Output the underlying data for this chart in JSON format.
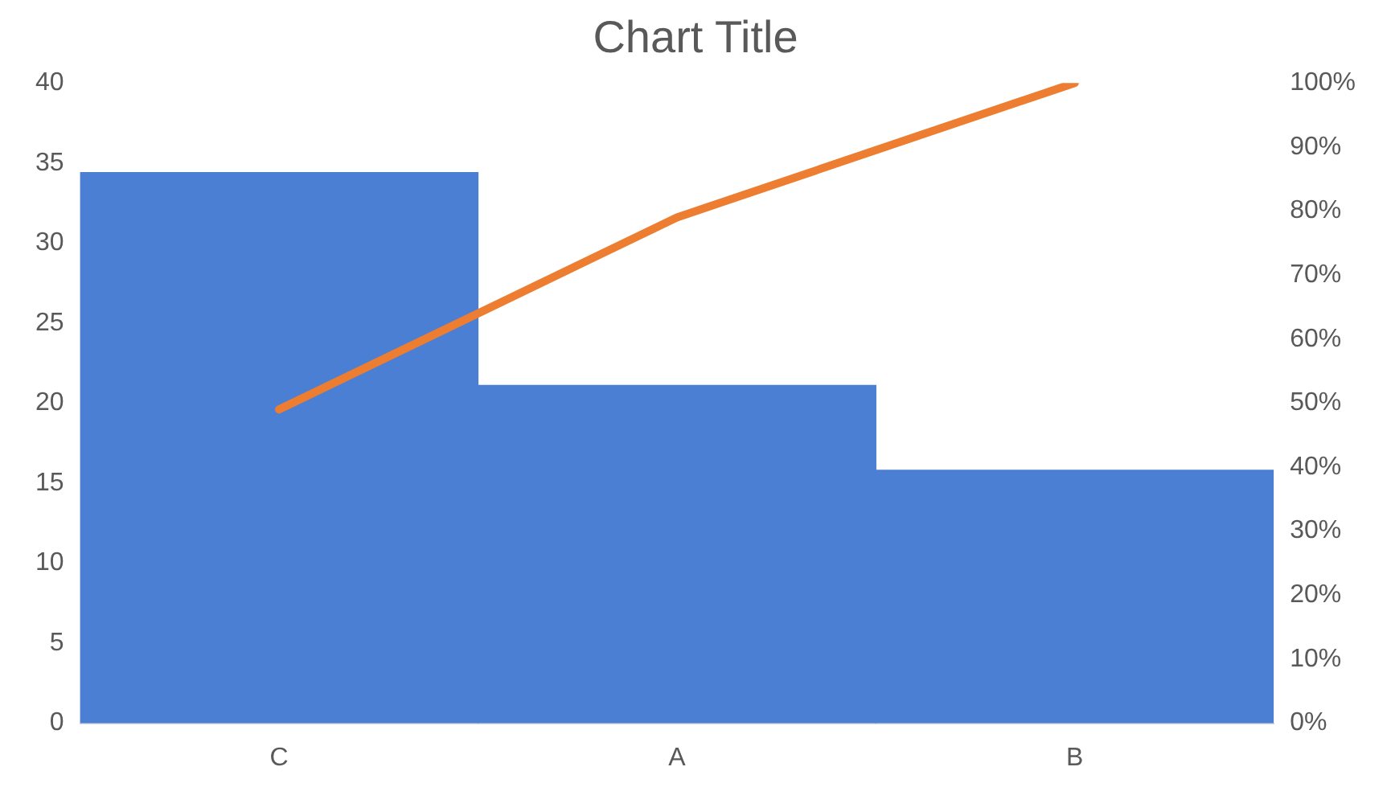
{
  "chart_data": {
    "type": "bar",
    "title": "Chart Title",
    "categories": [
      "C",
      "A",
      "B"
    ],
    "series": [
      {
        "color": "#4a7fd4",
        "values": [
          34.4,
          21.1,
          15.8
        ]
      },
      {
        "type": "line",
        "axis": "y2",
        "color": "#ed7d31",
        "values": [
          49,
          79,
          100
        ]
      }
    ],
    "ylim": [
      0,
      40
    ],
    "yticks": [
      0,
      5,
      10,
      15,
      20,
      25,
      30,
      35,
      40
    ],
    "y2lim": [
      0,
      100
    ],
    "y2ticks": [
      {
        "value": 0,
        "label": "0%"
      },
      {
        "value": 10,
        "label": "10%"
      },
      {
        "value": 20,
        "label": "20%"
      },
      {
        "value": 30,
        "label": "30%"
      },
      {
        "value": 40,
        "label": "40%"
      },
      {
        "value": 50,
        "label": "50%"
      },
      {
        "value": 60,
        "label": "60%"
      },
      {
        "value": 70,
        "label": "70%"
      },
      {
        "value": 80,
        "label": "80%"
      },
      {
        "value": 90,
        "label": "90%"
      },
      {
        "value": 100,
        "label": "100%"
      }
    ],
    "grid": false,
    "legend": false,
    "marker": "none"
  }
}
